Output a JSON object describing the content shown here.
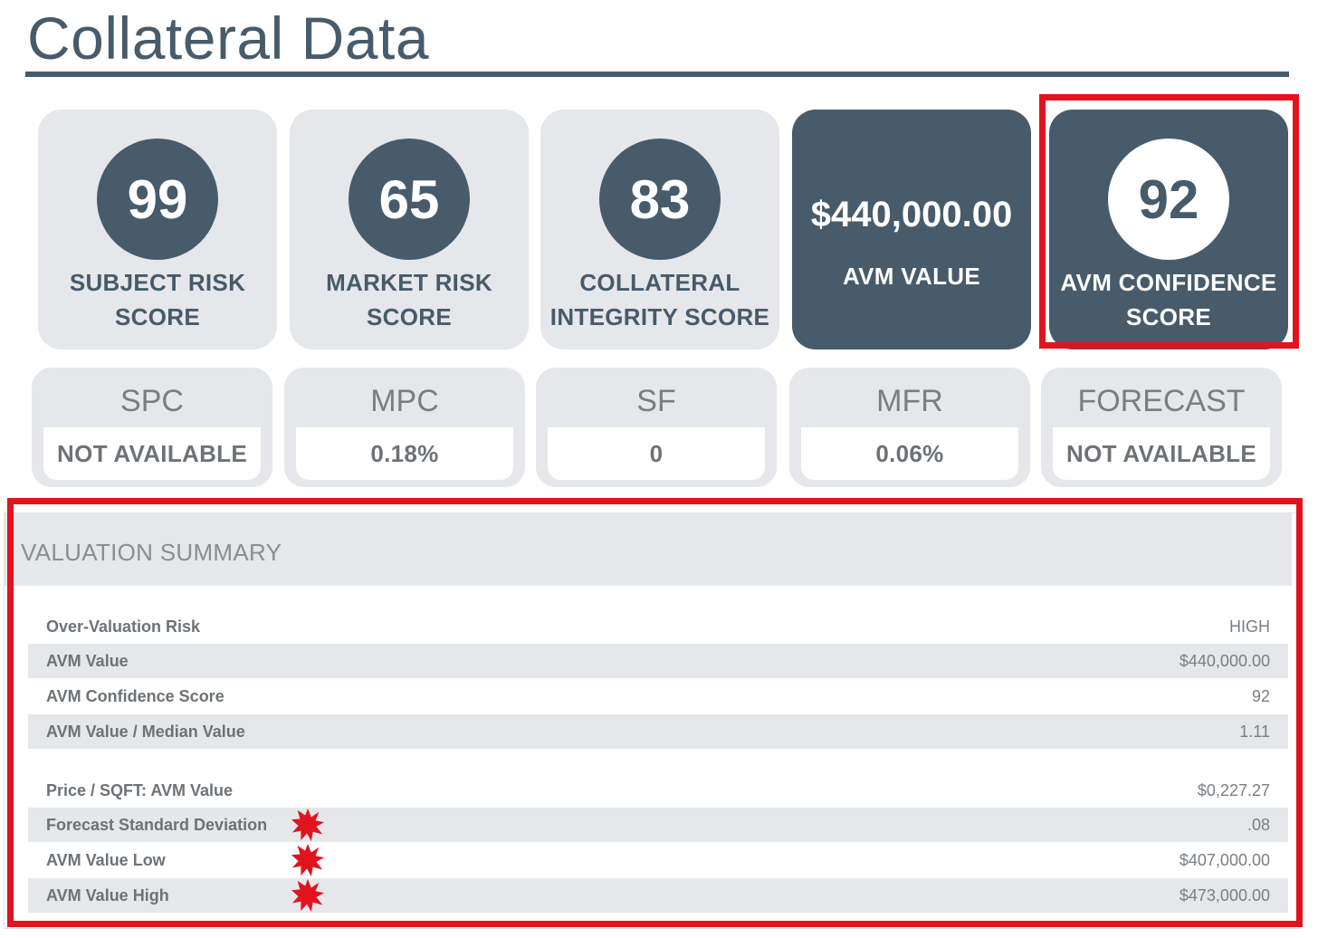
{
  "page": {
    "title": "Collateral Data"
  },
  "score_cards": [
    {
      "value": "99",
      "label": "SUBJECT RISK\nSCORE"
    },
    {
      "value": "65",
      "label": "MARKET RISK\nSCORE"
    },
    {
      "value": "83",
      "label": "COLLATERAL\nINTEGRITY SCORE"
    }
  ],
  "avm_card": {
    "value": "$440,000.00",
    "label": "AVM VALUE"
  },
  "confidence_card": {
    "value": "92",
    "label": "AVM CONFIDENCE\nSCORE"
  },
  "metrics": [
    {
      "name": "SPC",
      "value": "NOT AVAILABLE"
    },
    {
      "name": "MPC",
      "value": "0.18%"
    },
    {
      "name": "SF",
      "value": "0"
    },
    {
      "name": "MFR",
      "value": "0.06%"
    },
    {
      "name": "FORECAST",
      "value": "NOT AVAILABLE"
    }
  ],
  "valuation_summary": {
    "title": "VALUATION SUMMARY",
    "rows": [
      {
        "label": "Over-Valuation Risk",
        "value": "HIGH"
      },
      {
        "label": "AVM Value",
        "value": "$440,000.00"
      },
      {
        "label": "AVM Confidence Score",
        "value": "92"
      },
      {
        "label": "AVM Value / Median Value",
        "value": "1.11"
      },
      {
        "label": "Price / SQFT: AVM Value",
        "value": "$0,227.27"
      },
      {
        "label": "Forecast Standard Deviation",
        "value": ".08"
      },
      {
        "label": "AVM Value Low",
        "value": "$407,000.00"
      },
      {
        "label": "AVM Value High",
        "value": "$473,000.00"
      }
    ]
  },
  "colors": {
    "slate": "#475b6a",
    "card_grey": "#e6e7ea",
    "highlight_red": "#e1141e"
  },
  "icons": {
    "flag_marker": "red-starburst-icon"
  }
}
